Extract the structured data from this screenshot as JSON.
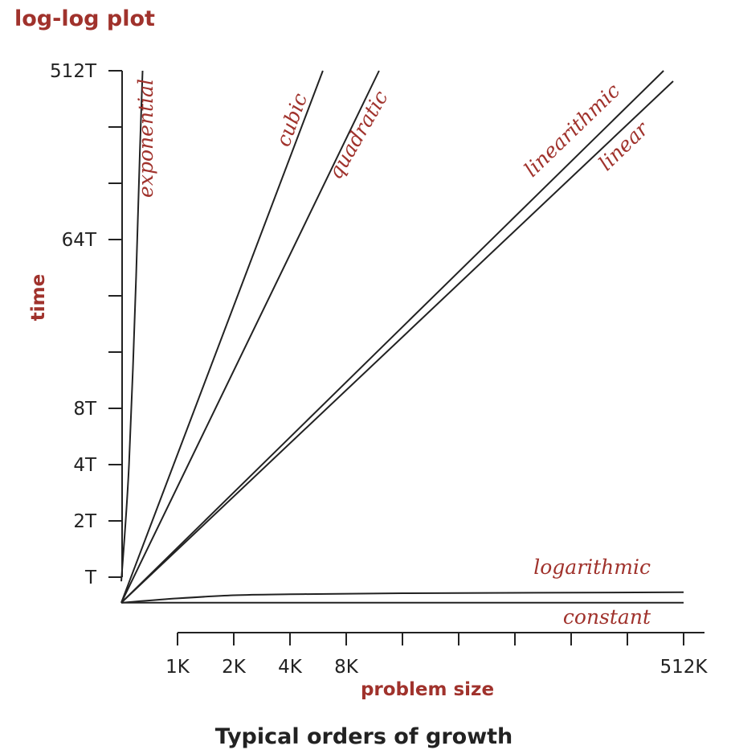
{
  "chart_data": {
    "type": "line",
    "title": "log-log plot",
    "ylabel": "time",
    "xlabel": "problem size",
    "caption": "Typical orders of growth",
    "yticks": [
      {
        "value": 1,
        "label": "T"
      },
      {
        "value": 2,
        "label": "2T"
      },
      {
        "value": 4,
        "label": "4T"
      },
      {
        "value": 8,
        "label": "8T"
      },
      {
        "value": 16,
        "label": ""
      },
      {
        "value": 32,
        "label": ""
      },
      {
        "value": 64,
        "label": "64T"
      },
      {
        "value": 128,
        "label": ""
      },
      {
        "value": 256,
        "label": ""
      },
      {
        "value": 512,
        "label": "512T"
      }
    ],
    "xticks": [
      {
        "value": 1,
        "label": "1K"
      },
      {
        "value": 2,
        "label": "2K"
      },
      {
        "value": 4,
        "label": "4K"
      },
      {
        "value": 8,
        "label": "8K"
      },
      {
        "value": 16,
        "label": ""
      },
      {
        "value": 32,
        "label": ""
      },
      {
        "value": 64,
        "label": ""
      },
      {
        "value": 128,
        "label": ""
      },
      {
        "value": 256,
        "label": ""
      },
      {
        "value": 512,
        "label": "512K"
      }
    ],
    "scale": "log-log",
    "series": [
      {
        "name": "exponential",
        "x": [
          0.5,
          0.55,
          0.6,
          0.63,
          0.65
        ],
        "y": [
          0.95,
          4,
          40,
          200,
          512
        ]
      },
      {
        "name": "cubic",
        "x": [
          0.5,
          6
        ],
        "y": [
          0.73,
          512
        ]
      },
      {
        "name": "quadratic",
        "x": [
          0.5,
          12
        ],
        "y": [
          0.73,
          512
        ]
      },
      {
        "name": "linearithmic",
        "x": [
          0.5,
          400
        ],
        "y": [
          0.73,
          512
        ]
      },
      {
        "name": "linear",
        "x": [
          0.5,
          450
        ],
        "y": [
          0.73,
          450
        ]
      },
      {
        "name": "logarithmic",
        "x": [
          0.5,
          1,
          2,
          4,
          16,
          512
        ],
        "y": [
          0.73,
          0.77,
          0.8,
          0.81,
          0.82,
          0.83
        ]
      },
      {
        "name": "constant",
        "x": [
          0.5,
          512
        ],
        "y": [
          0.73,
          0.73
        ]
      }
    ]
  }
}
